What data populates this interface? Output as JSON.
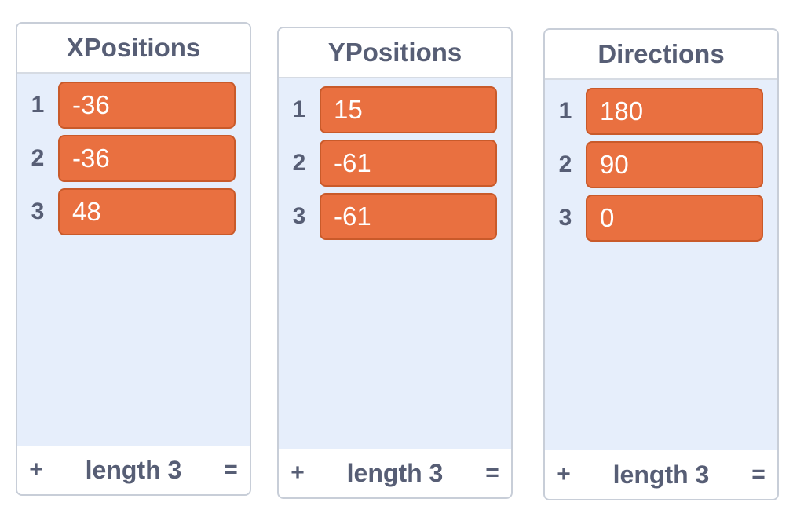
{
  "lists": [
    {
      "title": "XPositions",
      "items": [
        {
          "index": "1",
          "value": "-36"
        },
        {
          "index": "2",
          "value": "-36"
        },
        {
          "index": "3",
          "value": "48"
        }
      ],
      "footer": {
        "add": "+",
        "length": "length 3",
        "resize": "="
      }
    },
    {
      "title": "YPositions",
      "items": [
        {
          "index": "1",
          "value": "15"
        },
        {
          "index": "2",
          "value": "-61"
        },
        {
          "index": "3",
          "value": "-61"
        }
      ],
      "footer": {
        "add": "+",
        "length": "length 3",
        "resize": "="
      }
    },
    {
      "title": "Directions",
      "items": [
        {
          "index": "1",
          "value": "180"
        },
        {
          "index": "2",
          "value": "90"
        },
        {
          "index": "3",
          "value": "0"
        }
      ],
      "footer": {
        "add": "+",
        "length": "length 3",
        "resize": "="
      }
    }
  ],
  "colors": {
    "item_fill": "#e97040",
    "item_border": "#c95a2a",
    "list_background": "#e6eefb",
    "text": "#575e75"
  }
}
